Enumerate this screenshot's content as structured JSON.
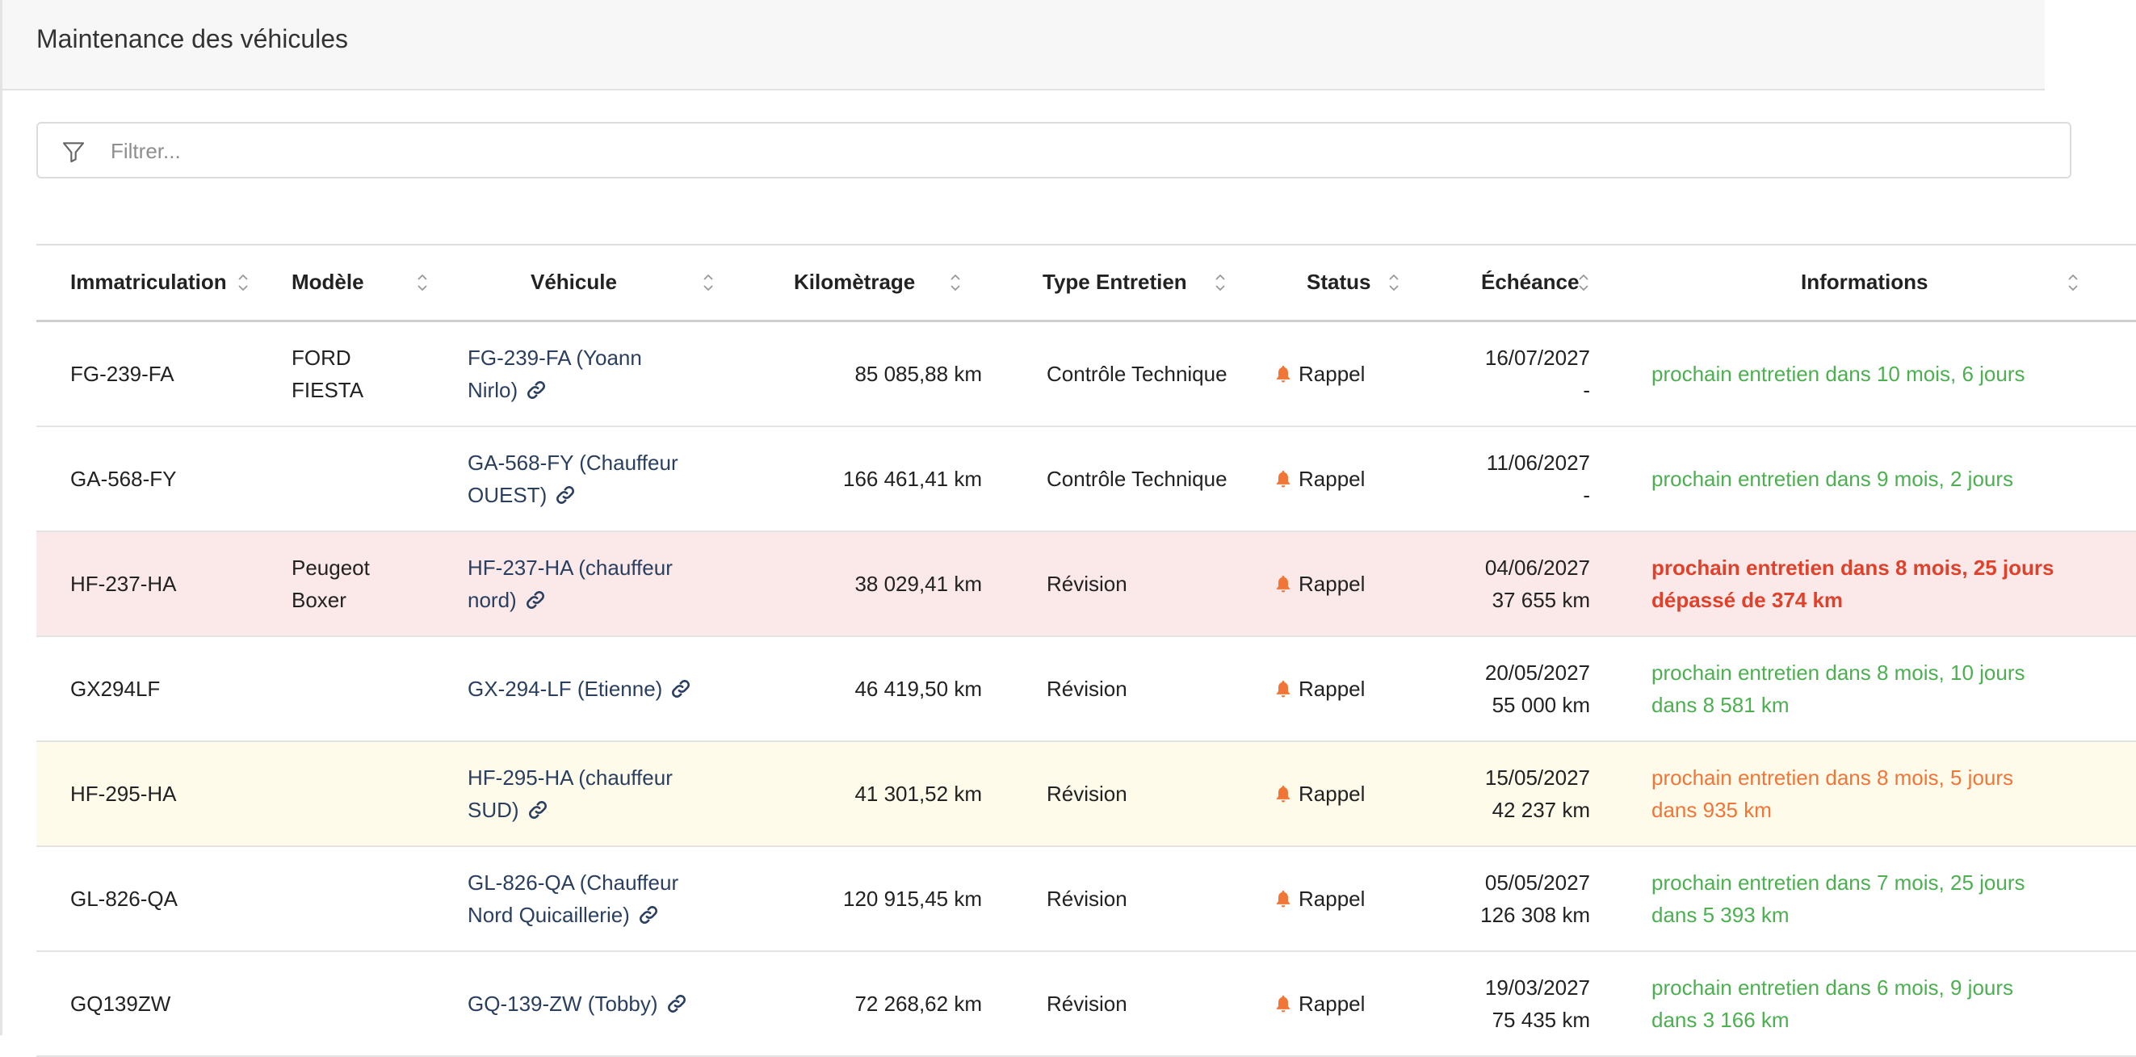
{
  "header": {
    "title": "Maintenance des véhicules"
  },
  "filter": {
    "placeholder": "Filtrer...",
    "value": ""
  },
  "columns": {
    "immatriculation": "Immatriculation",
    "modele": "Modèle",
    "vehicule": "Véhicule",
    "kilometrage": "Kilomètrage",
    "type": "Type Entretien",
    "status": "Status",
    "echeance": "Échéance",
    "informations": "Informations"
  },
  "icons": {
    "filter": "filter-icon",
    "sort": "sort-icon",
    "link": "link-icon",
    "bell": "bell-icon"
  },
  "colors": {
    "ok": "#4caf50",
    "warn": "#f07536",
    "danger": "#e0412b",
    "bell": "#f07536",
    "danger_row": "#fbe8e8",
    "warn_row": "#fefbeb"
  },
  "rows": [
    {
      "immat": "FG-239-FA",
      "modele_1": "FORD",
      "modele_2": "FIESTA",
      "vehicule_1": "FG-239-FA (Yoann",
      "vehicule_2": "Nirlo)",
      "km": "85 085,88 km",
      "type": "Contrôle Technique",
      "status": "Rappel",
      "echeance_date": "16/07/2027",
      "echeance_km": "-",
      "info_1": "prochain entretien dans 10 mois, 6 jours",
      "info_2": "",
      "level": "ok"
    },
    {
      "immat": "GA-568-FY",
      "modele_1": "",
      "modele_2": "",
      "vehicule_1": "GA-568-FY (Chauffeur",
      "vehicule_2": "OUEST)",
      "km": "166 461,41 km",
      "type": "Contrôle Technique",
      "status": "Rappel",
      "echeance_date": "11/06/2027",
      "echeance_km": "-",
      "info_1": "prochain entretien dans 9 mois, 2 jours",
      "info_2": "",
      "level": "ok"
    },
    {
      "immat": "HF-237-HA",
      "modele_1": "Peugeot",
      "modele_2": "Boxer",
      "vehicule_1": "HF-237-HA (chauffeur",
      "vehicule_2": "nord)",
      "km": "38 029,41 km",
      "type": "Révision",
      "status": "Rappel",
      "echeance_date": "04/06/2027",
      "echeance_km": "37 655 km",
      "info_1": "prochain entretien dans 8 mois, 25 jours",
      "info_2": "dépassé de 374 km",
      "level": "danger"
    },
    {
      "immat": "GX294LF",
      "modele_1": "",
      "modele_2": "",
      "vehicule_1": "GX-294-LF (Etienne)",
      "vehicule_2": "",
      "km": "46 419,50 km",
      "type": "Révision",
      "status": "Rappel",
      "echeance_date": "20/05/2027",
      "echeance_km": "55 000 km",
      "info_1": "prochain entretien dans 8 mois, 10 jours",
      "info_2": "dans 8 581 km",
      "level": "ok"
    },
    {
      "immat": "HF-295-HA",
      "modele_1": "",
      "modele_2": "",
      "vehicule_1": "HF-295-HA (chauffeur",
      "vehicule_2": "SUD)",
      "km": "41 301,52 km",
      "type": "Révision",
      "status": "Rappel",
      "echeance_date": "15/05/2027",
      "echeance_km": "42 237 km",
      "info_1": "prochain entretien dans 8 mois, 5 jours",
      "info_2": "dans 935 km",
      "level": "warn"
    },
    {
      "immat": "GL-826-QA",
      "modele_1": "",
      "modele_2": "",
      "vehicule_1": "GL-826-QA (Chauffeur",
      "vehicule_2": "Nord Quicaillerie)",
      "km": "120 915,45 km",
      "type": "Révision",
      "status": "Rappel",
      "echeance_date": "05/05/2027",
      "echeance_km": "126 308 km",
      "info_1": "prochain entretien dans 7 mois, 25 jours",
      "info_2": "dans 5 393 km",
      "level": "ok"
    },
    {
      "immat": "GQ139ZW",
      "modele_1": "",
      "modele_2": "",
      "vehicule_1": "GQ-139-ZW (Tobby)",
      "vehicule_2": "",
      "km": "72 268,62 km",
      "type": "Révision",
      "status": "Rappel",
      "echeance_date": "19/03/2027",
      "echeance_km": "75 435 km",
      "info_1": "prochain entretien dans 6 mois, 9 jours",
      "info_2": "dans 3 166 km",
      "level": "ok"
    }
  ]
}
